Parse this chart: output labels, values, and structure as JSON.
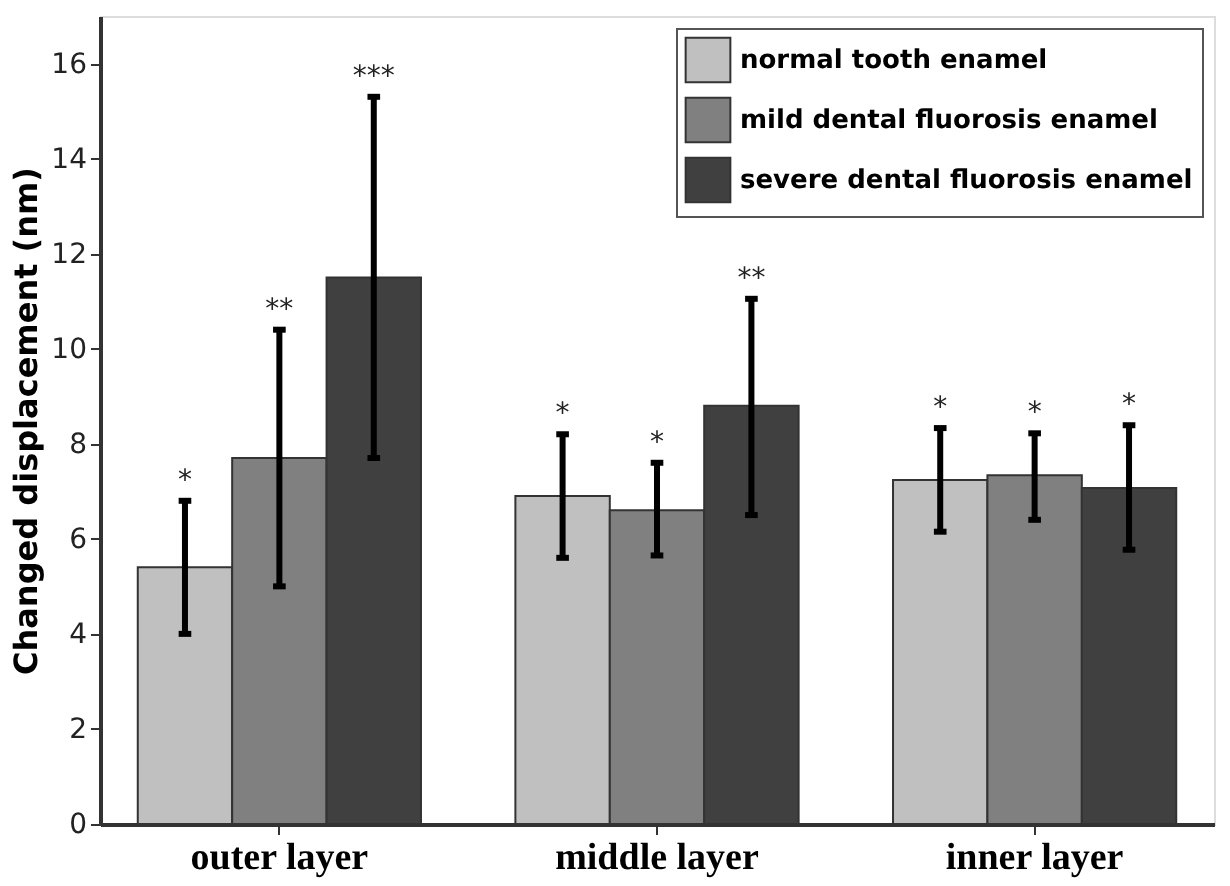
{
  "chart_data": {
    "type": "bar",
    "ylabel": "Changed displacement (nm)",
    "categories": [
      "outer layer",
      "middle layer",
      "inner layer"
    ],
    "series": [
      {
        "name": "normal tooth enamel",
        "color": "#c0c0c0",
        "values": [
          5.4,
          6.9,
          7.24
        ],
        "errors": [
          [
            4.0,
            6.8
          ],
          [
            5.6,
            8.2
          ],
          [
            6.15,
            8.33
          ]
        ]
      },
      {
        "name": "mild dental fluorosis enamel",
        "color": "#808080",
        "values": [
          7.7,
          6.6,
          7.34
        ],
        "errors": [
          [
            5.0,
            10.4
          ],
          [
            5.65,
            7.6
          ],
          [
            6.4,
            8.22
          ]
        ]
      },
      {
        "name": "severe dental fluorosis enamel",
        "color": "#404040",
        "values": [
          11.5,
          8.8,
          7.07
        ],
        "errors": [
          [
            7.7,
            15.3
          ],
          [
            6.5,
            11.05
          ],
          [
            5.77,
            8.39
          ]
        ]
      }
    ],
    "ylim": [
      0,
      17
    ],
    "yticks": [
      0,
      2,
      4,
      6,
      8,
      10,
      12,
      14,
      16
    ],
    "legend": "top right",
    "grid": false,
    "annotations": [
      "*",
      "**",
      "***",
      "*",
      "*",
      "**",
      "*",
      "*",
      "*"
    ]
  }
}
